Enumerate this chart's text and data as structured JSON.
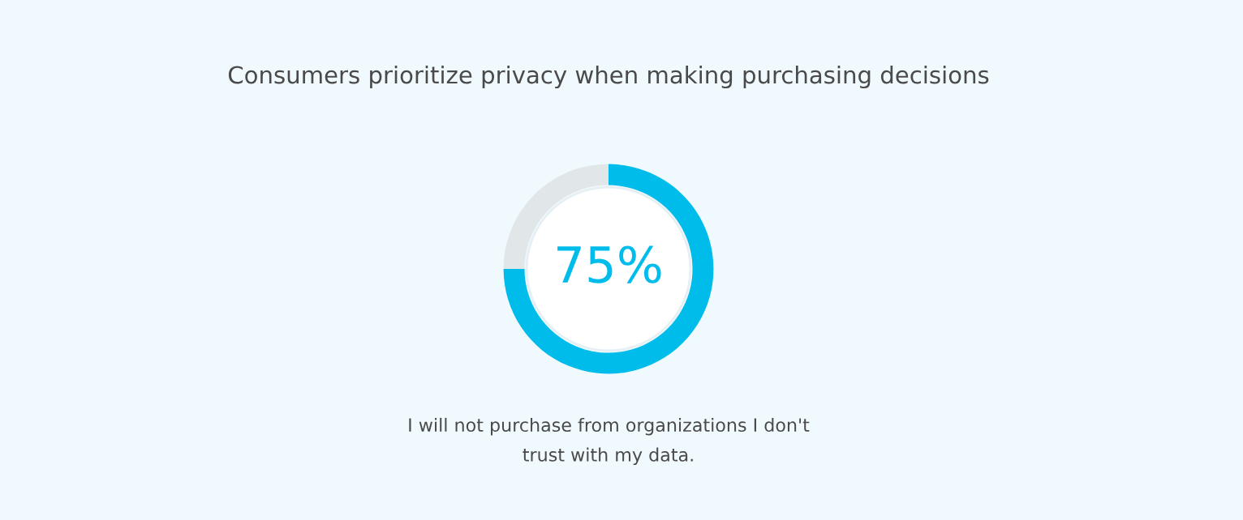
{
  "chart_data": {
    "type": "donut",
    "title": "Consumers prioritize privacy when making purchasing decisions",
    "categories": [
      null,
      null
    ],
    "values": [
      75,
      25
    ],
    "colors": [
      "#00bceb",
      "#e1e6e8"
    ],
    "value_labels": [
      "75%",
      null
    ],
    "annotations": [
      "I will not purchase from organizations I don't\ntrust with my data."
    ],
    "legend": false
  }
}
